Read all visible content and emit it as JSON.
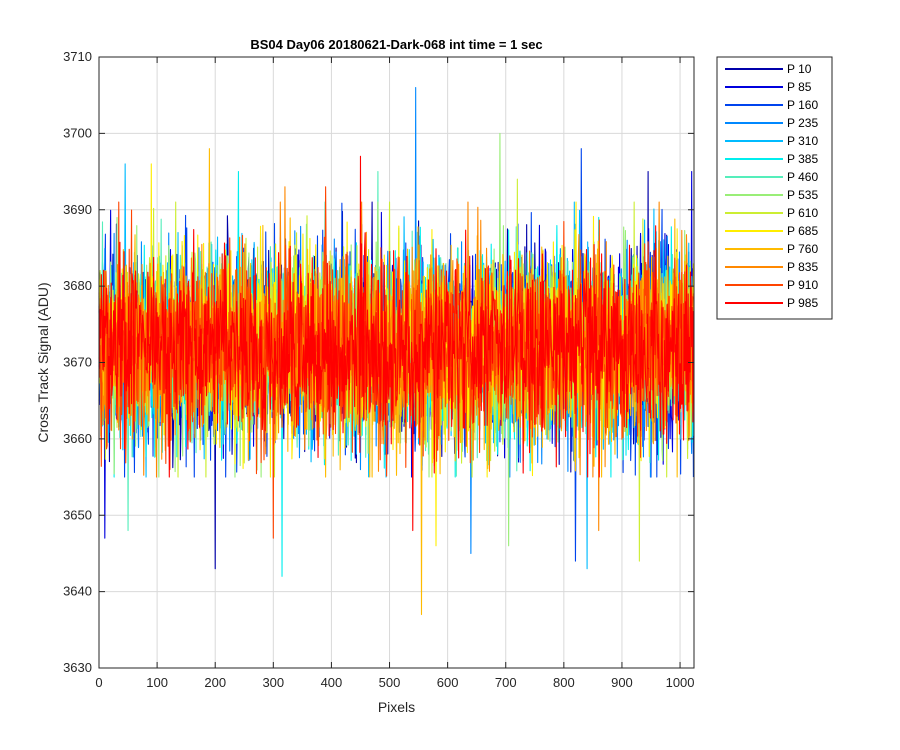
{
  "chart_data": {
    "type": "line",
    "title": "BS04 Day06 20180621-Dark-068 int time = 1 sec",
    "xlabel": "Pixels",
    "ylabel": "Cross Track Signal (ADU)",
    "xlim": [
      0,
      1024
    ],
    "ylim": [
      3630,
      3710
    ],
    "xticks": [
      0,
      100,
      200,
      300,
      400,
      500,
      600,
      700,
      800,
      900,
      1000
    ],
    "yticks": [
      3630,
      3640,
      3650,
      3660,
      3670,
      3680,
      3690,
      3700,
      3710
    ],
    "xtick_labels": [
      "0",
      "100",
      "200",
      "300",
      "400",
      "500",
      "600",
      "700",
      "800",
      "900",
      "1000"
    ],
    "ytick_labels": [
      "3630",
      "3640",
      "3650",
      "3660",
      "3670",
      "3680",
      "3690",
      "3700",
      "3710"
    ],
    "grid": true,
    "legend_position": "outside-top-right",
    "pixel_count": 1024,
    "noise_mean": 3672,
    "noise_sigma": 6,
    "series": [
      {
        "name": "P 10",
        "color": "#0000aa",
        "peak_pixel": 945,
        "peak_value": 3695,
        "min_pixel": 200,
        "min_value": 3643
      },
      {
        "name": "P 85",
        "color": "#0000dd",
        "peak_pixel": 1020,
        "peak_value": 3695,
        "min_pixel": 10,
        "min_value": 3647
      },
      {
        "name": "P 160",
        "color": "#0044ee",
        "peak_pixel": 830,
        "peak_value": 3698,
        "min_pixel": 820,
        "min_value": 3644
      },
      {
        "name": "P 235",
        "color": "#0088ff",
        "peak_pixel": 545,
        "peak_value": 3706,
        "min_pixel": 640,
        "min_value": 3645
      },
      {
        "name": "P 310",
        "color": "#00bbff",
        "peak_pixel": 45,
        "peak_value": 3696,
        "min_pixel": 840,
        "min_value": 3643
      },
      {
        "name": "P 385",
        "color": "#00eeee",
        "peak_pixel": 240,
        "peak_value": 3695,
        "min_pixel": 315,
        "min_value": 3642
      },
      {
        "name": "P 460",
        "color": "#55eebb",
        "peak_pixel": 480,
        "peak_value": 3695,
        "min_pixel": 50,
        "min_value": 3648
      },
      {
        "name": "P 535",
        "color": "#99ee77",
        "peak_pixel": 690,
        "peak_value": 3700,
        "min_pixel": 705,
        "min_value": 3646
      },
      {
        "name": "P 610",
        "color": "#ccee33",
        "peak_pixel": 720,
        "peak_value": 3694,
        "min_pixel": 930,
        "min_value": 3644
      },
      {
        "name": "P 685",
        "color": "#ffee00",
        "peak_pixel": 90,
        "peak_value": 3696,
        "min_pixel": 580,
        "min_value": 3646
      },
      {
        "name": "P 760",
        "color": "#ffbb00",
        "peak_pixel": 190,
        "peak_value": 3698,
        "min_pixel": 555,
        "min_value": 3637
      },
      {
        "name": "P 835",
        "color": "#ff8800",
        "peak_pixel": 320,
        "peak_value": 3693,
        "min_pixel": 860,
        "min_value": 3648
      },
      {
        "name": "P 910",
        "color": "#ff4400",
        "peak_pixel": 390,
        "peak_value": 3693,
        "min_pixel": 300,
        "min_value": 3647
      },
      {
        "name": "P 985",
        "color": "#ff0000",
        "peak_pixel": 450,
        "peak_value": 3697,
        "min_pixel": 540,
        "min_value": 3648
      }
    ]
  }
}
